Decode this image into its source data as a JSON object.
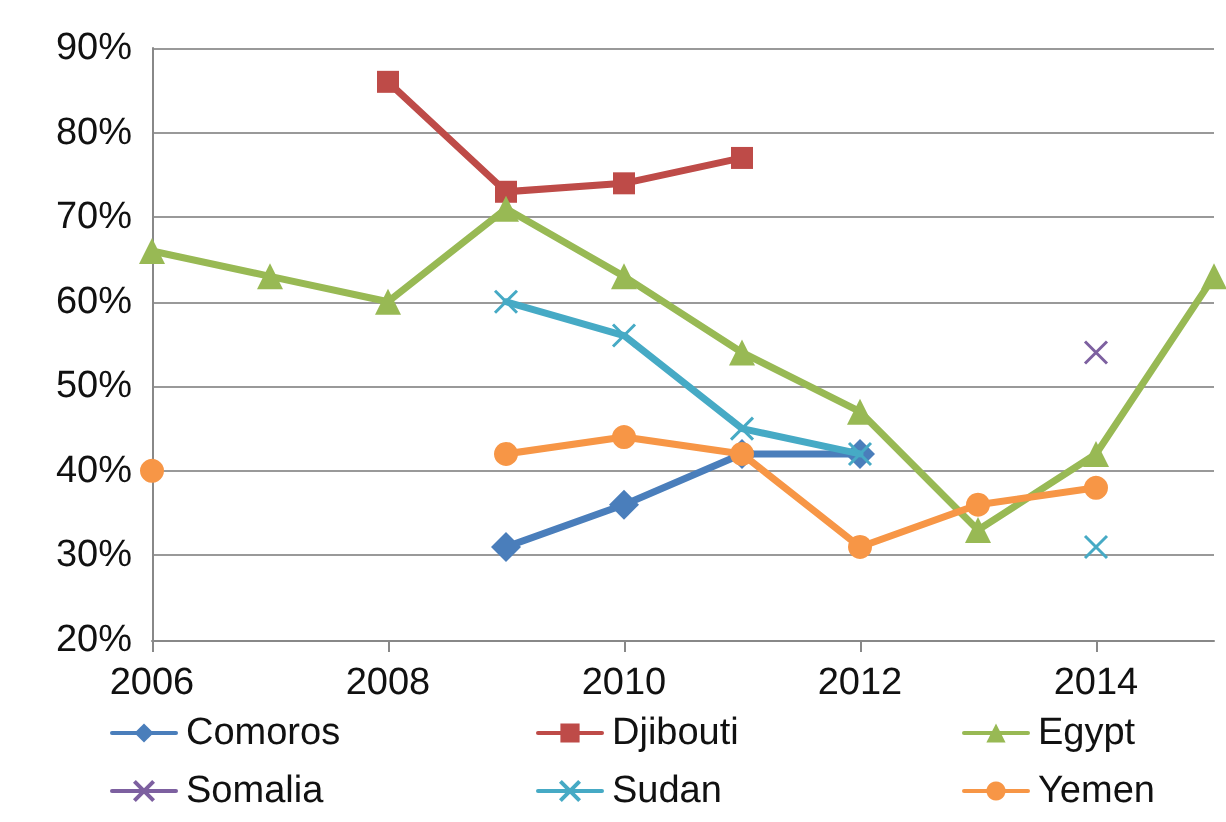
{
  "chart_data": {
    "type": "line",
    "x": [
      2006,
      2007,
      2008,
      2009,
      2010,
      2011,
      2012,
      2013,
      2014,
      2015
    ],
    "xlim": [
      2006,
      2015
    ],
    "xticks": [
      2006,
      2008,
      2010,
      2012,
      2014
    ],
    "ylim": [
      20,
      90
    ],
    "yticks": [
      {
        "value": 20,
        "label": "20%"
      },
      {
        "value": 30,
        "label": "30%"
      },
      {
        "value": 40,
        "label": "40%"
      },
      {
        "value": 50,
        "label": "50%"
      },
      {
        "value": 60,
        "label": "60%"
      },
      {
        "value": 70,
        "label": "70%"
      },
      {
        "value": 80,
        "label": "80%"
      },
      {
        "value": 90,
        "label": "90%"
      }
    ],
    "grid": "y",
    "legend": "bottom",
    "line_style": "solid",
    "series": [
      {
        "name": "Comoros",
        "color": "#4a7ebb",
        "marker": "diamond",
        "values": [
          null,
          null,
          null,
          31,
          36,
          42,
          42,
          null,
          null,
          null
        ]
      },
      {
        "name": "Djibouti",
        "color": "#be4b48",
        "marker": "square",
        "values": [
          null,
          null,
          86,
          73,
          74,
          77,
          null,
          null,
          null,
          null
        ]
      },
      {
        "name": "Egypt",
        "color": "#98b954",
        "marker": "triangle",
        "values": [
          66,
          63,
          60,
          71,
          63,
          54,
          47,
          33,
          42,
          63
        ]
      },
      {
        "name": "Somalia",
        "color": "#7d60a0",
        "marker": "cross",
        "values": [
          null,
          null,
          null,
          null,
          null,
          null,
          null,
          null,
          54,
          null
        ]
      },
      {
        "name": "Sudan",
        "color": "#46aac5",
        "marker": "cross",
        "values": [
          null,
          null,
          null,
          60,
          56,
          45,
          42,
          null,
          31,
          null
        ]
      },
      {
        "name": "Yemen",
        "color": "#f79646",
        "marker": "circle",
        "values": [
          40,
          null,
          null,
          42,
          44,
          42,
          31,
          36,
          38,
          null
        ]
      }
    ]
  }
}
